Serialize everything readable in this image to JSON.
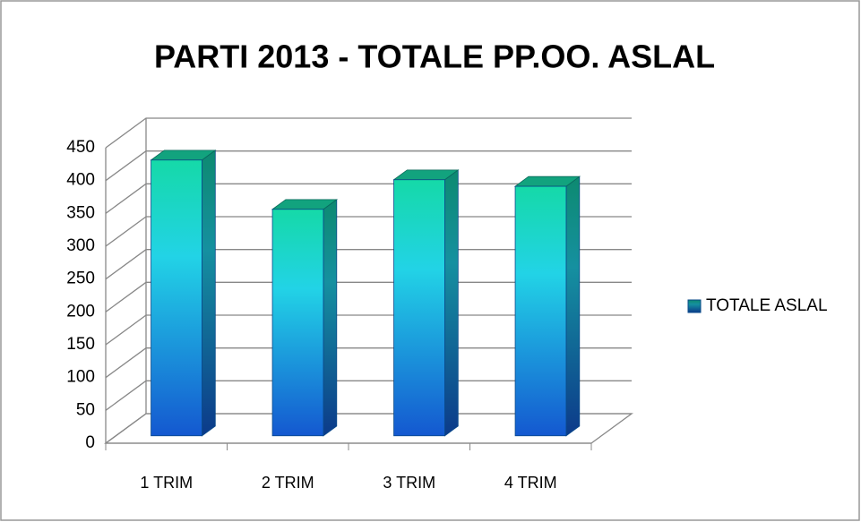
{
  "chart_data": {
    "type": "bar",
    "title": "PARTI 2013 - TOTALE PP.OO. ASLAL",
    "categories": [
      "1 TRIM",
      "2 TRIM",
      "3 TRIM",
      "4 TRIM"
    ],
    "series": [
      {
        "name": "TOTALE ASLAL",
        "color": "#1ec8d8",
        "values": [
          420,
          345,
          390,
          380
        ]
      }
    ],
    "ylim": [
      0,
      450
    ],
    "yticks": [
      0,
      50,
      100,
      150,
      200,
      250,
      300,
      350,
      400,
      450
    ],
    "grid": true,
    "legend": "right"
  }
}
